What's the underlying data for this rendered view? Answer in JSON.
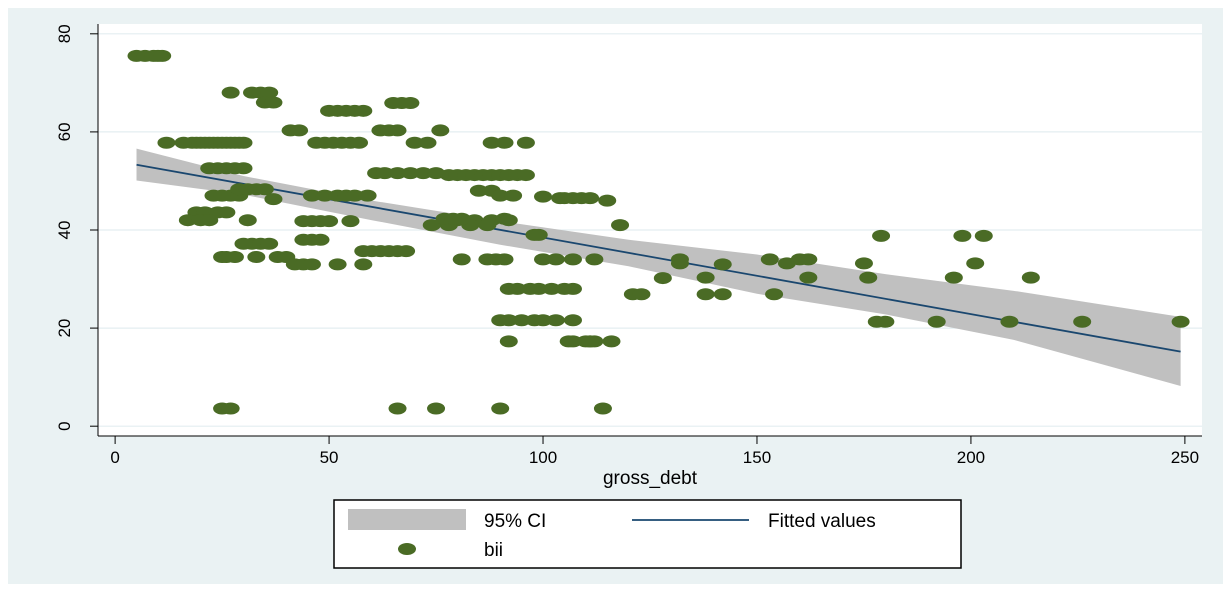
{
  "chart_data": {
    "type": "scatter",
    "xlabel": "gross_debt",
    "ylabel": "",
    "xlim": [
      -4,
      254
    ],
    "ylim": [
      -2,
      82
    ],
    "xticks": [
      "0",
      "50",
      "100",
      "150",
      "200",
      "250"
    ],
    "yticks": [
      "0",
      "20",
      "40",
      "60",
      "80"
    ],
    "grid": true,
    "legend_position": "bottom",
    "legend": {
      "ci_label": "95% CI",
      "fit_label": "Fitted values",
      "scatter_label": "bii"
    },
    "colors": {
      "outer_background": "#eaf2f3",
      "plot_background": "#ffffff",
      "points": "#4a6b25",
      "fit_line": "#1a476f",
      "ci_band": "#c0c0c0",
      "gridline": "#e4eef0"
    },
    "fitted_line": {
      "x": [
        5,
        249
      ],
      "y": [
        53.3,
        15.2
      ]
    },
    "ci_band": {
      "x": [
        5,
        30,
        60,
        90,
        120,
        150,
        180,
        210,
        249
      ],
      "upper": [
        56.6,
        51.0,
        46.0,
        41.8,
        38.0,
        35.0,
        31.0,
        27.6,
        22.3
      ],
      "lower": [
        50.1,
        47.2,
        42.0,
        37.0,
        32.6,
        27.0,
        22.8,
        17.6,
        8.2
      ]
    },
    "series": [
      {
        "name": "bii",
        "x": [
          5,
          7,
          9,
          10,
          11,
          12,
          16,
          18,
          19,
          20,
          21,
          22,
          23,
          24,
          25,
          26,
          27,
          28,
          29,
          30,
          22,
          24,
          26,
          28,
          30,
          23,
          25,
          27,
          29,
          19,
          21,
          24,
          26,
          17,
          20,
          22,
          31,
          27,
          32,
          34,
          36,
          35,
          37,
          32,
          34,
          36,
          30,
          33,
          38,
          40,
          26,
          28,
          25,
          29,
          31,
          33,
          35,
          37,
          41,
          43,
          44,
          46,
          48,
          50,
          52,
          54,
          56,
          58,
          47,
          49,
          51,
          53,
          55,
          57,
          46,
          49,
          52,
          54,
          56,
          59,
          44,
          46,
          48,
          50,
          55,
          58,
          60,
          62,
          64,
          66,
          68,
          42,
          44,
          46,
          52,
          58,
          61,
          63,
          66,
          69,
          72,
          75,
          65,
          67,
          69,
          62,
          64,
          66,
          70,
          73,
          76,
          78,
          80,
          82,
          84,
          86,
          88,
          90,
          92,
          94,
          96,
          88,
          91,
          96,
          80,
          84,
          88,
          78,
          83,
          87,
          85,
          88,
          90,
          93,
          74,
          77,
          79,
          81,
          91,
          92,
          98,
          99,
          100,
          104,
          105,
          107,
          109,
          111,
          115,
          118,
          100,
          103,
          107,
          112,
          97,
          102,
          105,
          107,
          92,
          94,
          99,
          90,
          92,
          95,
          98,
          100,
          103,
          107,
          107,
          110,
          112,
          116,
          121,
          123,
          128,
          132,
          132,
          138,
          138,
          142,
          142,
          153,
          154,
          157,
          160,
          162,
          162,
          175,
          176,
          178,
          179,
          180,
          192,
          196,
          198,
          201,
          203,
          209,
          214,
          226,
          249,
          25,
          27,
          66,
          75,
          90,
          114,
          92,
          106,
          111,
          111,
          81,
          87,
          89,
          91
        ],
        "y": [
          75.5,
          75.5,
          75.5,
          75.5,
          75.5,
          57.8,
          57.8,
          57.8,
          57.8,
          57.8,
          57.8,
          57.8,
          57.8,
          57.8,
          57.8,
          57.8,
          57.8,
          57.8,
          57.8,
          57.8,
          52.6,
          52.6,
          52.6,
          52.6,
          52.6,
          47.0,
          47.0,
          47.0,
          47.0,
          43.6,
          43.6,
          43.6,
          43.6,
          42.0,
          42.0,
          42.0,
          42.0,
          68.0,
          68.0,
          68.0,
          68.0,
          66.0,
          66.0,
          37.2,
          37.2,
          37.2,
          37.2,
          34.5,
          34.5,
          34.5,
          34.5,
          34.5,
          34.5,
          48.3,
          48.3,
          48.3,
          48.3,
          46.3,
          60.3,
          60.3,
          38.0,
          38.0,
          38.0,
          64.3,
          64.3,
          64.3,
          64.3,
          64.3,
          57.8,
          57.8,
          57.8,
          57.8,
          57.8,
          57.8,
          47.0,
          47.0,
          47.0,
          47.0,
          47.0,
          47.0,
          41.8,
          41.8,
          41.8,
          41.8,
          41.8,
          35.7,
          35.7,
          35.7,
          35.7,
          35.7,
          35.7,
          33.0,
          33.0,
          33.0,
          33.0,
          33.0,
          51.6,
          51.6,
          51.6,
          51.6,
          51.6,
          51.6,
          65.9,
          65.9,
          65.9,
          60.3,
          60.3,
          60.3,
          57.8,
          57.8,
          60.3,
          51.2,
          51.2,
          51.2,
          51.2,
          51.2,
          51.2,
          51.2,
          51.2,
          51.2,
          51.2,
          57.8,
          57.8,
          57.8,
          42.0,
          42.0,
          42.0,
          41.0,
          41.0,
          41.0,
          48.0,
          48.0,
          47.0,
          47.0,
          41.0,
          42.3,
          42.3,
          42.3,
          42.3,
          42.0,
          39.0,
          39.0,
          46.8,
          46.5,
          46.5,
          46.5,
          46.5,
          46.5,
          46.0,
          41.0,
          34.0,
          34.0,
          34.0,
          34.0,
          28.0,
          28.0,
          28.0,
          28.0,
          28.0,
          28.0,
          28.0,
          21.6,
          21.6,
          21.6,
          21.6,
          21.6,
          21.6,
          21.6,
          17.3,
          17.3,
          17.3,
          17.3,
          26.9,
          26.9,
          30.2,
          33.2,
          34.0,
          30.3,
          26.9,
          33.0,
          26.9,
          34.0,
          26.9,
          33.2,
          34.0,
          34.0,
          30.3,
          33.2,
          30.3,
          21.3,
          38.8,
          21.3,
          21.3,
          30.3,
          38.8,
          33.2,
          38.8,
          21.3,
          30.3,
          21.3,
          21.3,
          3.6,
          3.6,
          3.6,
          3.6,
          3.6,
          3.6,
          17.3,
          17.3,
          17.3,
          17.3,
          34.0,
          34.0,
          34.0,
          34.0
        ]
      }
    ]
  }
}
